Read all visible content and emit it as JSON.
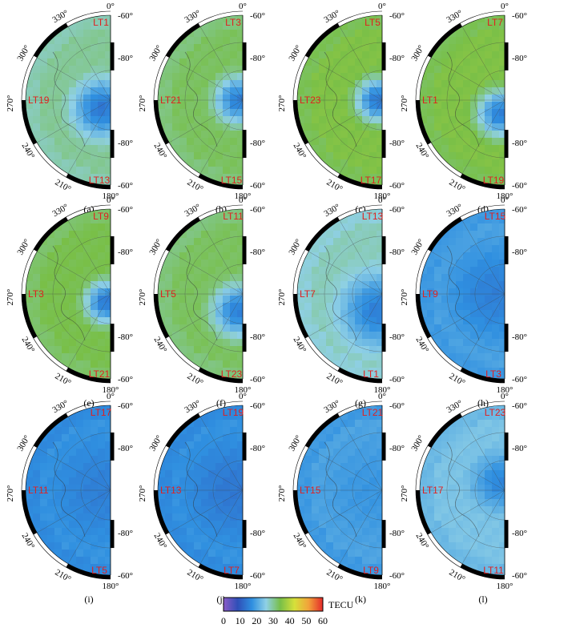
{
  "chart_data": {
    "type": "heatmap",
    "projection": "polar half-disk (southern hemisphere)",
    "colorbar": {
      "label": "TECU",
      "ticks": [
        "0",
        "10",
        "20",
        "30",
        "40",
        "50",
        "60"
      ],
      "range": [
        0,
        60
      ],
      "colors": [
        "#8a5cc7",
        "#2f4fb8",
        "#2f8fe0",
        "#8fd0e6",
        "#78bf48",
        "#d6e03a",
        "#f2a23a",
        "#e42a2a"
      ]
    },
    "longitude_ticks": [
      "0°",
      "330°",
      "300°",
      "270°",
      "240°",
      "210°",
      "180°"
    ],
    "latitude_ticks": [
      "-60°",
      "-80°",
      "-80°",
      "-60°"
    ],
    "panels": [
      {
        "label": "(a)",
        "lt_top": "LT1",
        "lt_left": "LT19",
        "lt_bottom": "LT13",
        "base_tec": 30,
        "hole_tec": 14,
        "hole_center": [
          0.9,
          0.55
        ],
        "hole_radius": 0.55
      },
      {
        "label": "(b)",
        "lt_top": "LT3",
        "lt_left": "LT21",
        "lt_bottom": "LT15",
        "base_tec": 33,
        "hole_tec": 15,
        "hole_center": [
          0.95,
          0.5
        ],
        "hole_radius": 0.45
      },
      {
        "label": "(c)",
        "lt_top": "LT5",
        "lt_left": "LT23",
        "lt_bottom": "LT17",
        "base_tec": 35,
        "hole_tec": 14,
        "hole_center": [
          0.95,
          0.5
        ],
        "hole_radius": 0.42
      },
      {
        "label": "(d)",
        "lt_top": "LT7",
        "lt_left": "LT1",
        "lt_bottom": "LT19",
        "base_tec": 35,
        "hole_tec": 15,
        "hole_center": [
          0.95,
          0.58
        ],
        "hole_radius": 0.45
      },
      {
        "label": "(e)",
        "lt_top": "LT9",
        "lt_left": "LT3",
        "lt_bottom": "LT21",
        "base_tec": 34,
        "hole_tec": 14,
        "hole_center": [
          0.95,
          0.55
        ],
        "hole_radius": 0.4
      },
      {
        "label": "(f)",
        "lt_top": "LT11",
        "lt_left": "LT5",
        "lt_bottom": "LT23",
        "base_tec": 33,
        "hole_tec": 15,
        "hole_center": [
          0.95,
          0.6
        ],
        "hole_radius": 0.5
      },
      {
        "label": "(g)",
        "lt_top": "LT13",
        "lt_left": "LT7",
        "lt_bottom": "LT1",
        "base_tec": 28,
        "hole_tec": 15,
        "hole_center": [
          0.95,
          0.6
        ],
        "hole_radius": 0.7
      },
      {
        "label": "(h)",
        "lt_top": "LT15",
        "lt_left": "LT9",
        "lt_bottom": "LT3",
        "base_tec": 20,
        "hole_tec": 15,
        "hole_center": [
          0.9,
          0.5
        ],
        "hole_radius": 0.9
      },
      {
        "label": "(i)",
        "lt_top": "LT17",
        "lt_left": "LT11",
        "lt_bottom": "LT5",
        "base_tec": 18,
        "hole_tec": 15,
        "hole_center": [
          0.9,
          0.5
        ],
        "hole_radius": 0.9
      },
      {
        "label": "(j)",
        "lt_top": "LT19",
        "lt_left": "LT13",
        "lt_bottom": "LT7",
        "base_tec": 18,
        "hole_tec": 14,
        "hole_center": [
          0.9,
          0.5
        ],
        "hole_radius": 0.9
      },
      {
        "label": "(k)",
        "lt_top": "LT21",
        "lt_left": "LT15",
        "lt_bottom": "LT9",
        "base_tec": 20,
        "hole_tec": 18,
        "hole_center": [
          0.9,
          0.5
        ],
        "hole_radius": 0.9
      },
      {
        "label": "(l)",
        "lt_top": "LT23",
        "lt_left": "LT17",
        "lt_bottom": "LT11",
        "base_tec": 24,
        "hole_tec": 16,
        "hole_center": [
          0.95,
          0.45
        ],
        "hole_radius": 0.5
      }
    ]
  }
}
